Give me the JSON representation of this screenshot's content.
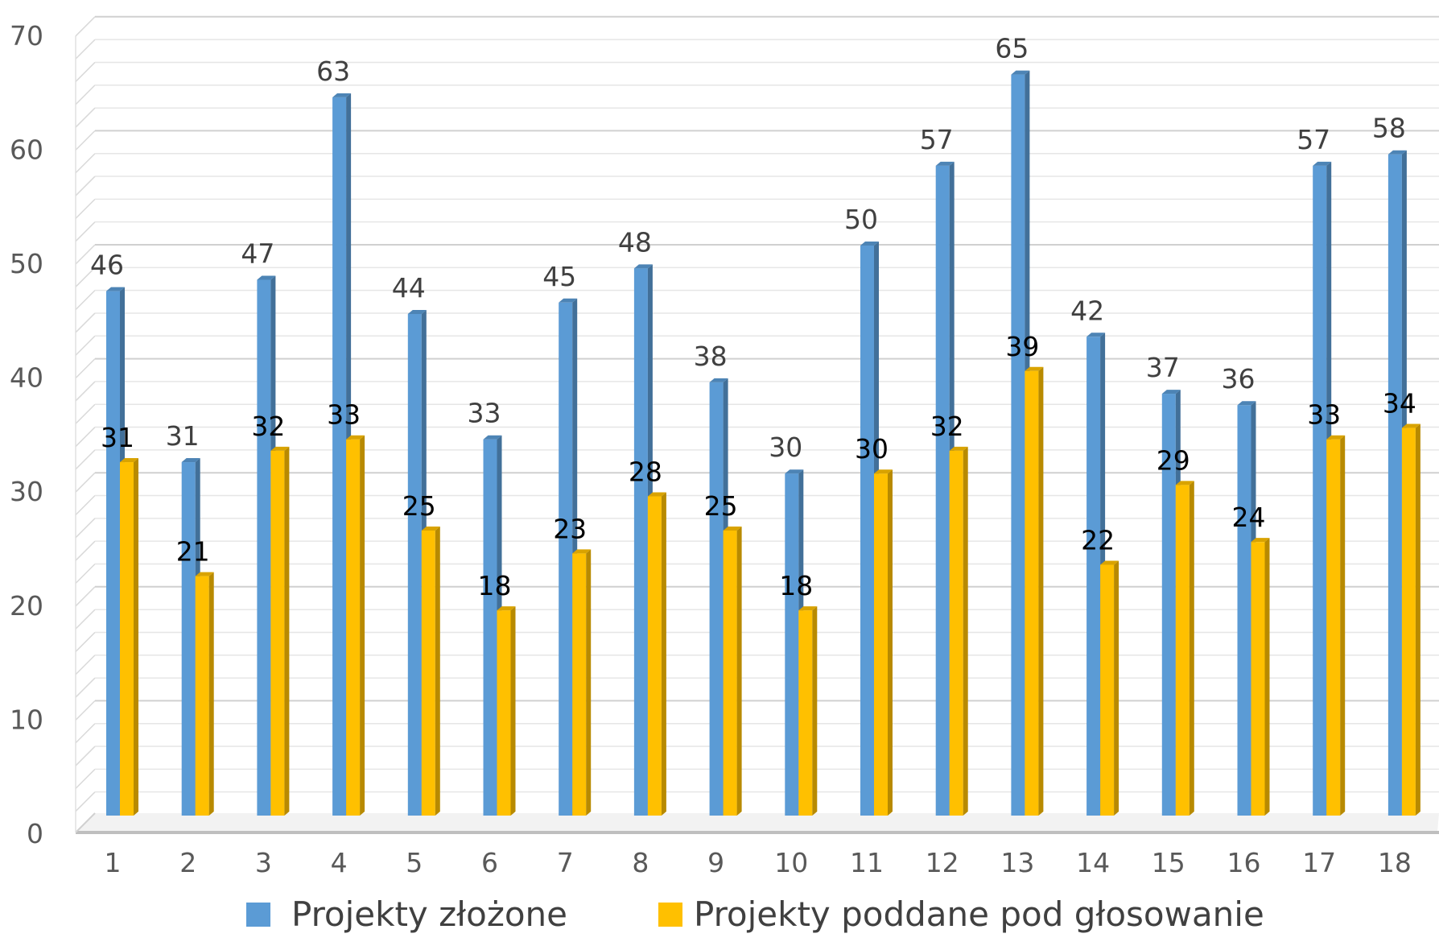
{
  "chart_data": {
    "type": "bar",
    "title": "",
    "xlabel": "",
    "ylabel": "",
    "ylim": [
      0,
      70
    ],
    "yticks": [
      0,
      10,
      20,
      30,
      40,
      50,
      60,
      70
    ],
    "grid": true,
    "legend_position": "bottom",
    "categories": [
      "1",
      "2",
      "3",
      "4",
      "5",
      "6",
      "7",
      "8",
      "9",
      "10",
      "11",
      "12",
      "13",
      "14",
      "15",
      "16",
      "17",
      "18"
    ],
    "series": [
      {
        "name": "Projekty złożone",
        "color": "#5B9BD5",
        "values": [
          46,
          31,
          47,
          63,
          44,
          33,
          45,
          48,
          38,
          30,
          50,
          57,
          65,
          42,
          37,
          36,
          57,
          58
        ]
      },
      {
        "name": "Projekty poddane pod głosowanie",
        "color": "#FFC000",
        "values": [
          31,
          21,
          32,
          33,
          25,
          18,
          23,
          28,
          25,
          18,
          30,
          32,
          39,
          22,
          29,
          24,
          33,
          34
        ]
      }
    ]
  }
}
